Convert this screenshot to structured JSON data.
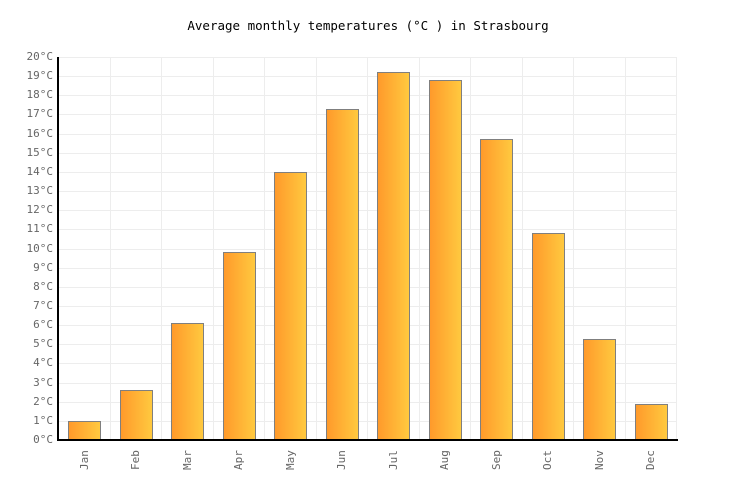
{
  "chart_data": {
    "type": "bar",
    "title": "Average monthly temperatures (°C ) in Strasbourg",
    "categories": [
      "Jan",
      "Feb",
      "Mar",
      "Apr",
      "May",
      "Jun",
      "Jul",
      "Aug",
      "Sep",
      "Oct",
      "Nov",
      "Dec"
    ],
    "values": [
      1.0,
      2.6,
      6.1,
      9.8,
      14.0,
      17.3,
      19.2,
      18.8,
      15.7,
      10.8,
      5.3,
      1.9
    ],
    "xlabel": "",
    "ylabel": "",
    "unit": "°C",
    "ylim": [
      0,
      20
    ],
    "ytick_step": 1,
    "ytick_labels": [
      "0°C",
      "1°C",
      "2°C",
      "3°C",
      "4°C",
      "5°C",
      "6°C",
      "7°C",
      "8°C",
      "9°C",
      "10°C",
      "11°C",
      "12°C",
      "13°C",
      "14°C",
      "15°C",
      "16°C",
      "17°C",
      "18°C",
      "19°C",
      "20°C"
    ],
    "grid": true,
    "legend": "none",
    "bar_orientation": "vertical",
    "x_label_rotation_deg": -90,
    "colors": {
      "bar_gradient_left": "#ff9a2b",
      "bar_gradient_right": "#ffc93f",
      "bar_border": "#7f7f7f",
      "gridline": "#ededed",
      "axis_line": "#000000",
      "tick_label": "#666666",
      "title": "#000000",
      "background": "#ffffff"
    }
  }
}
